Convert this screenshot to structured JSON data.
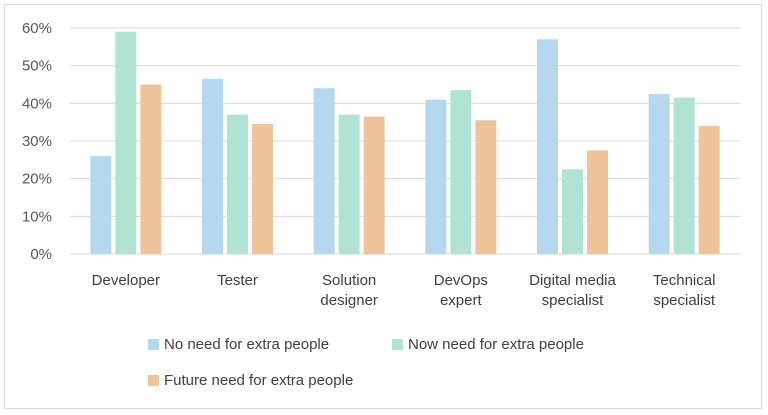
{
  "chart_data": {
    "type": "bar",
    "categories": [
      [
        "Developer"
      ],
      [
        "Tester"
      ],
      [
        "Solution",
        "designer"
      ],
      [
        "DevOps",
        "expert"
      ],
      [
        "Digital media",
        "specialist"
      ],
      [
        "Technical",
        "specialist"
      ]
    ],
    "series": [
      {
        "name": "No need for extra people",
        "color": "#b4d9ef",
        "values": [
          26,
          46.5,
          44,
          41,
          57,
          42.5
        ]
      },
      {
        "name": "Now need for extra people",
        "color": "#b0e3d4",
        "values": [
          59,
          37,
          37,
          43.5,
          22.5,
          41.5
        ]
      },
      {
        "name": "Future need for extra people",
        "color": "#eec49a",
        "values": [
          45,
          34.5,
          36.5,
          35.5,
          27.5,
          34
        ]
      }
    ],
    "ylim": [
      0,
      60
    ],
    "yticks": [
      0,
      10,
      20,
      30,
      40,
      50,
      60
    ],
    "ytick_labels": [
      "0%",
      "10%",
      "20%",
      "30%",
      "40%",
      "50%",
      "60%"
    ],
    "grid": true,
    "legend_position": "bottom"
  }
}
